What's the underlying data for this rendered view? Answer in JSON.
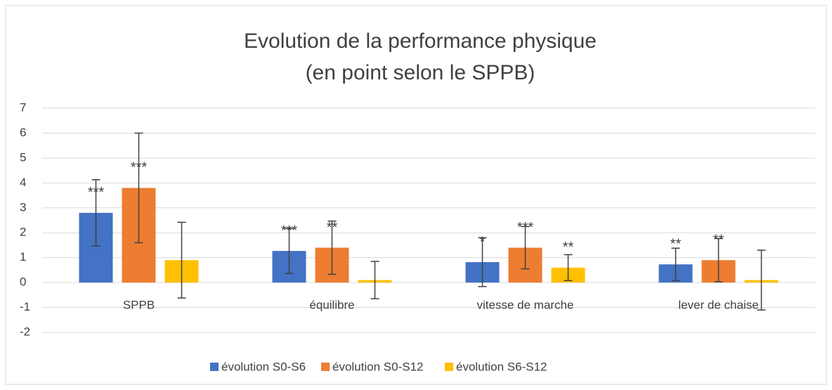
{
  "chart_data": {
    "type": "bar",
    "title": [
      "Evolution de la performance physique",
      "(en point selon le SPPB)"
    ],
    "categories": [
      "SPPB",
      "équilibre",
      "vitesse de marche",
      "lever de chaise"
    ],
    "series": [
      {
        "name": "évolution S0-S6",
        "color": "#4472c4",
        "values": [
          2.8,
          1.27,
          0.82,
          0.73
        ],
        "errors": [
          1.33,
          0.9,
          0.98,
          0.65
        ],
        "annotations": [
          "***",
          "***",
          "*",
          "**"
        ]
      },
      {
        "name": "évolution S0-S12",
        "color": "#ed7d31",
        "values": [
          3.8,
          1.4,
          1.4,
          0.9
        ],
        "errors": [
          2.2,
          1.07,
          0.85,
          0.87
        ],
        "annotations": [
          "***",
          "**",
          "***",
          "**"
        ]
      },
      {
        "name": "évolution S6-S12",
        "color": "#ffc000",
        "values": [
          0.9,
          0.1,
          0.6,
          0.1
        ],
        "errors": [
          1.52,
          0.75,
          0.52,
          1.2
        ],
        "annotations": [
          null,
          null,
          "**",
          null
        ]
      }
    ],
    "ylim": [
      -2,
      7
    ],
    "yticks": [
      -2,
      -1,
      0,
      1,
      2,
      3,
      4,
      5,
      6,
      7
    ],
    "grid": true,
    "legend": "bottom"
  }
}
